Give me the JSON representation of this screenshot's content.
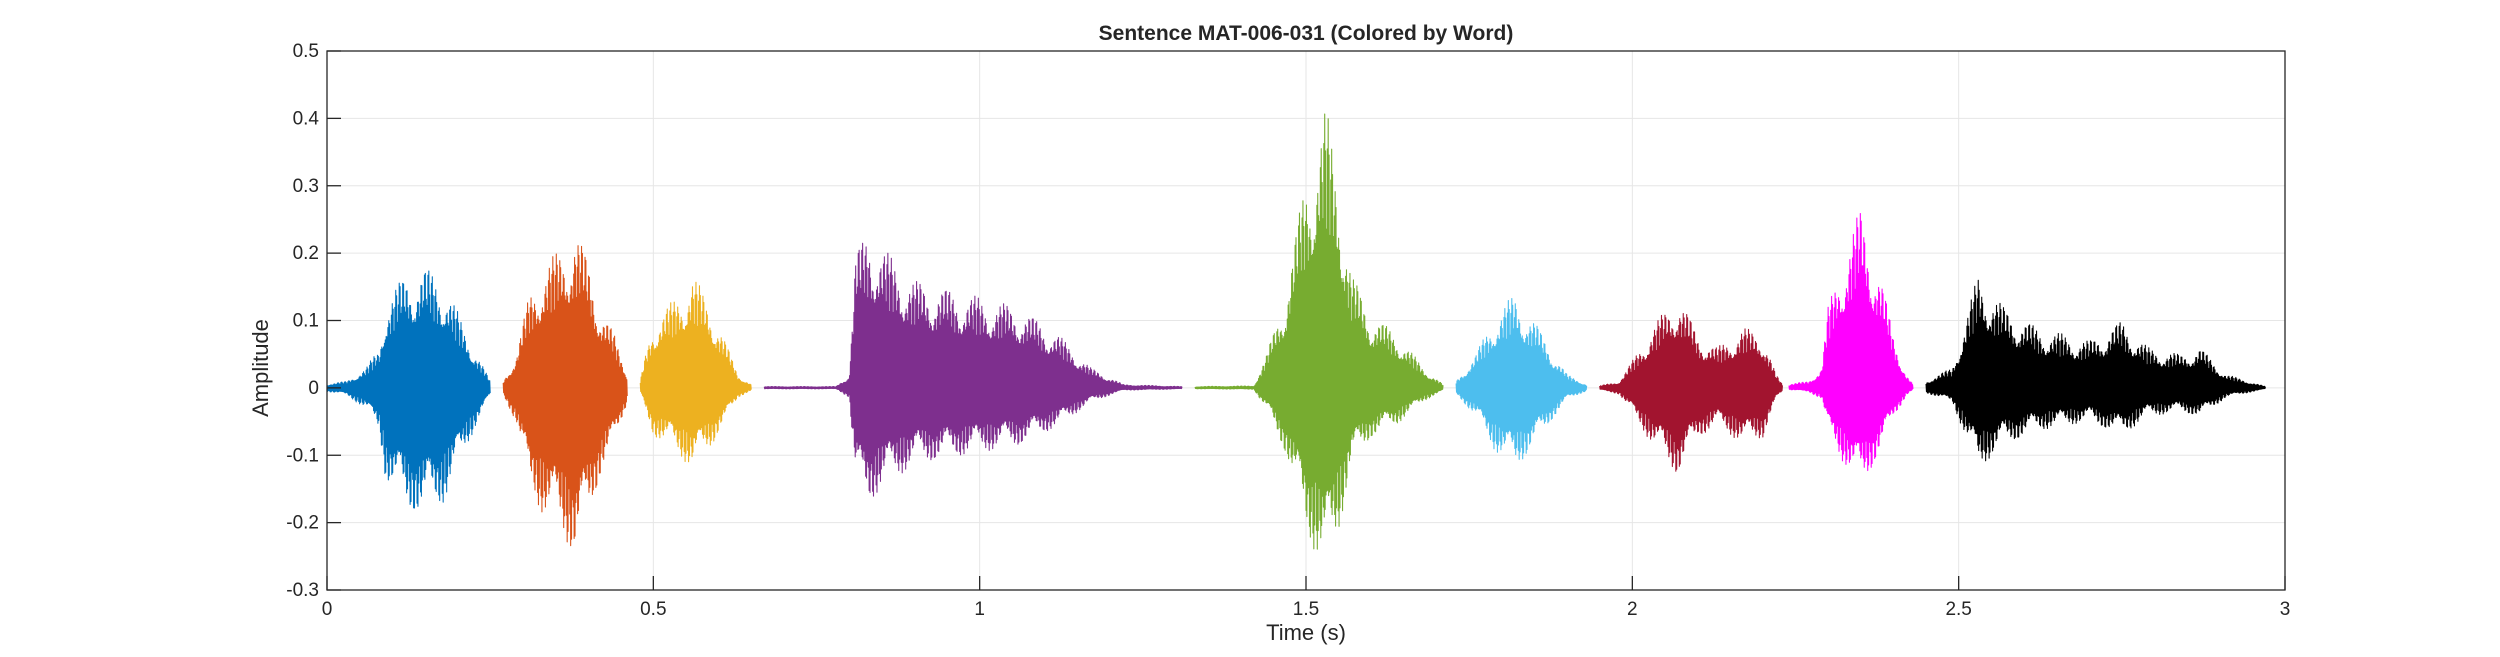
{
  "chart_data": {
    "type": "line",
    "title": "Sentence MAT-006-031 (Colored by Word)",
    "xlabel": "Time (s)",
    "ylabel": "Amplitude",
    "xlim": [
      0,
      3
    ],
    "ylim": [
      -0.3,
      0.5
    ],
    "xticks": [
      0,
      0.5,
      1,
      1.5,
      2,
      2.5,
      3
    ],
    "xtick_labels": [
      "0",
      "0.5",
      "1",
      "1.5",
      "2",
      "2.5",
      "3"
    ],
    "yticks": [
      -0.3,
      -0.2,
      -0.1,
      0,
      0.1,
      0.2,
      0.3,
      0.4,
      0.5
    ],
    "ytick_labels": [
      "-0.3",
      "-0.2",
      "-0.1",
      "0",
      "0.1",
      "0.2",
      "0.3",
      "0.4",
      "0.5"
    ],
    "grid": true,
    "series": [
      {
        "color": "#0072BD",
        "t_start": 0.0,
        "t_end": 0.25,
        "max": 0.18,
        "min": -0.19,
        "envelope": [
          [
            0.0,
            0.005
          ],
          [
            0.03,
            0.01
          ],
          [
            0.06,
            0.03
          ],
          [
            0.08,
            0.06
          ],
          [
            0.09,
            0.13
          ],
          [
            0.12,
            0.17
          ],
          [
            0.15,
            0.18
          ],
          [
            0.18,
            0.16
          ],
          [
            0.21,
            0.09
          ],
          [
            0.23,
            0.05
          ],
          [
            0.25,
            0.01
          ]
        ]
      },
      {
        "color": "#D95319",
        "t_start": 0.27,
        "t_end": 0.46,
        "max": 0.24,
        "min": -0.25,
        "envelope": [
          [
            0.27,
            0.01
          ],
          [
            0.29,
            0.05
          ],
          [
            0.31,
            0.14
          ],
          [
            0.33,
            0.18
          ],
          [
            0.36,
            0.21
          ],
          [
            0.38,
            0.24
          ],
          [
            0.4,
            0.19
          ],
          [
            0.42,
            0.12
          ],
          [
            0.44,
            0.08
          ],
          [
            0.46,
            0.02
          ]
        ]
      },
      {
        "color": "#EDB120",
        "t_start": 0.48,
        "t_end": 0.65,
        "max": 0.17,
        "min": -0.12,
        "envelope": [
          [
            0.48,
            0.01
          ],
          [
            0.49,
            0.06
          ],
          [
            0.5,
            0.1
          ],
          [
            0.53,
            0.13
          ],
          [
            0.56,
            0.17
          ],
          [
            0.59,
            0.12
          ],
          [
            0.61,
            0.07
          ],
          [
            0.63,
            0.02
          ],
          [
            0.65,
            0.005
          ]
        ]
      },
      {
        "color": "#7E2F8E",
        "t_start": 0.67,
        "t_end": 1.31,
        "max": 0.24,
        "min": -0.17,
        "envelope": [
          [
            0.67,
            0.002
          ],
          [
            0.78,
            0.002
          ],
          [
            0.8,
            0.02
          ],
          [
            0.81,
            0.2
          ],
          [
            0.83,
            0.24
          ],
          [
            0.86,
            0.2
          ],
          [
            0.9,
            0.16
          ],
          [
            0.98,
            0.14
          ],
          [
            1.06,
            0.12
          ],
          [
            1.12,
            0.08
          ],
          [
            1.17,
            0.03
          ],
          [
            1.22,
            0.005
          ],
          [
            1.31,
            0.002
          ]
        ]
      },
      {
        "color": "#77AC30",
        "t_start": 1.33,
        "t_end": 1.71,
        "max": 0.42,
        "min": -0.28,
        "envelope": [
          [
            1.33,
            0.002
          ],
          [
            1.42,
            0.003
          ],
          [
            1.44,
            0.05
          ],
          [
            1.47,
            0.15
          ],
          [
            1.5,
            0.32
          ],
          [
            1.53,
            0.42
          ],
          [
            1.55,
            0.32
          ],
          [
            1.57,
            0.17
          ],
          [
            1.6,
            0.11
          ],
          [
            1.64,
            0.08
          ],
          [
            1.68,
            0.03
          ],
          [
            1.71,
            0.005
          ]
        ]
      },
      {
        "color": "#4DBEEE",
        "t_start": 1.73,
        "t_end": 1.93,
        "max": 0.14,
        "min": -0.12,
        "envelope": [
          [
            1.73,
            0.01
          ],
          [
            1.76,
            0.05
          ],
          [
            1.79,
            0.11
          ],
          [
            1.82,
            0.14
          ],
          [
            1.85,
            0.1
          ],
          [
            1.88,
            0.05
          ],
          [
            1.9,
            0.02
          ],
          [
            1.93,
            0.005
          ]
        ]
      },
      {
        "color": "#A2142F",
        "t_start": 1.95,
        "t_end": 2.23,
        "max": 0.14,
        "min": -0.13,
        "envelope": [
          [
            1.95,
            0.003
          ],
          [
            1.98,
            0.01
          ],
          [
            2.0,
            0.04
          ],
          [
            2.03,
            0.09
          ],
          [
            2.07,
            0.14
          ],
          [
            2.1,
            0.08
          ],
          [
            2.13,
            0.06
          ],
          [
            2.17,
            0.09
          ],
          [
            2.2,
            0.08
          ],
          [
            2.22,
            0.02
          ],
          [
            2.23,
            0.005
          ]
        ]
      },
      {
        "color": "#FF00FF",
        "t_start": 2.24,
        "t_end": 2.43,
        "max": 0.27,
        "min": -0.15,
        "envelope": [
          [
            2.24,
            0.005
          ],
          [
            2.27,
            0.01
          ],
          [
            2.29,
            0.03
          ],
          [
            2.3,
            0.12
          ],
          [
            2.32,
            0.19
          ],
          [
            2.35,
            0.27
          ],
          [
            2.38,
            0.17
          ],
          [
            2.4,
            0.08
          ],
          [
            2.42,
            0.02
          ],
          [
            2.43,
            0.005
          ]
        ]
      },
      {
        "color": "#000000",
        "t_start": 2.45,
        "t_end": 2.97,
        "max": 0.17,
        "min": -0.12,
        "envelope": [
          [
            2.45,
            0.01
          ],
          [
            2.49,
            0.03
          ],
          [
            2.51,
            0.1
          ],
          [
            2.53,
            0.17
          ],
          [
            2.57,
            0.12
          ],
          [
            2.62,
            0.09
          ],
          [
            2.7,
            0.07
          ],
          [
            2.75,
            0.1
          ],
          [
            2.79,
            0.06
          ],
          [
            2.84,
            0.05
          ],
          [
            2.87,
            0.06
          ],
          [
            2.91,
            0.02
          ],
          [
            2.97,
            0.002
          ]
        ]
      }
    ]
  }
}
